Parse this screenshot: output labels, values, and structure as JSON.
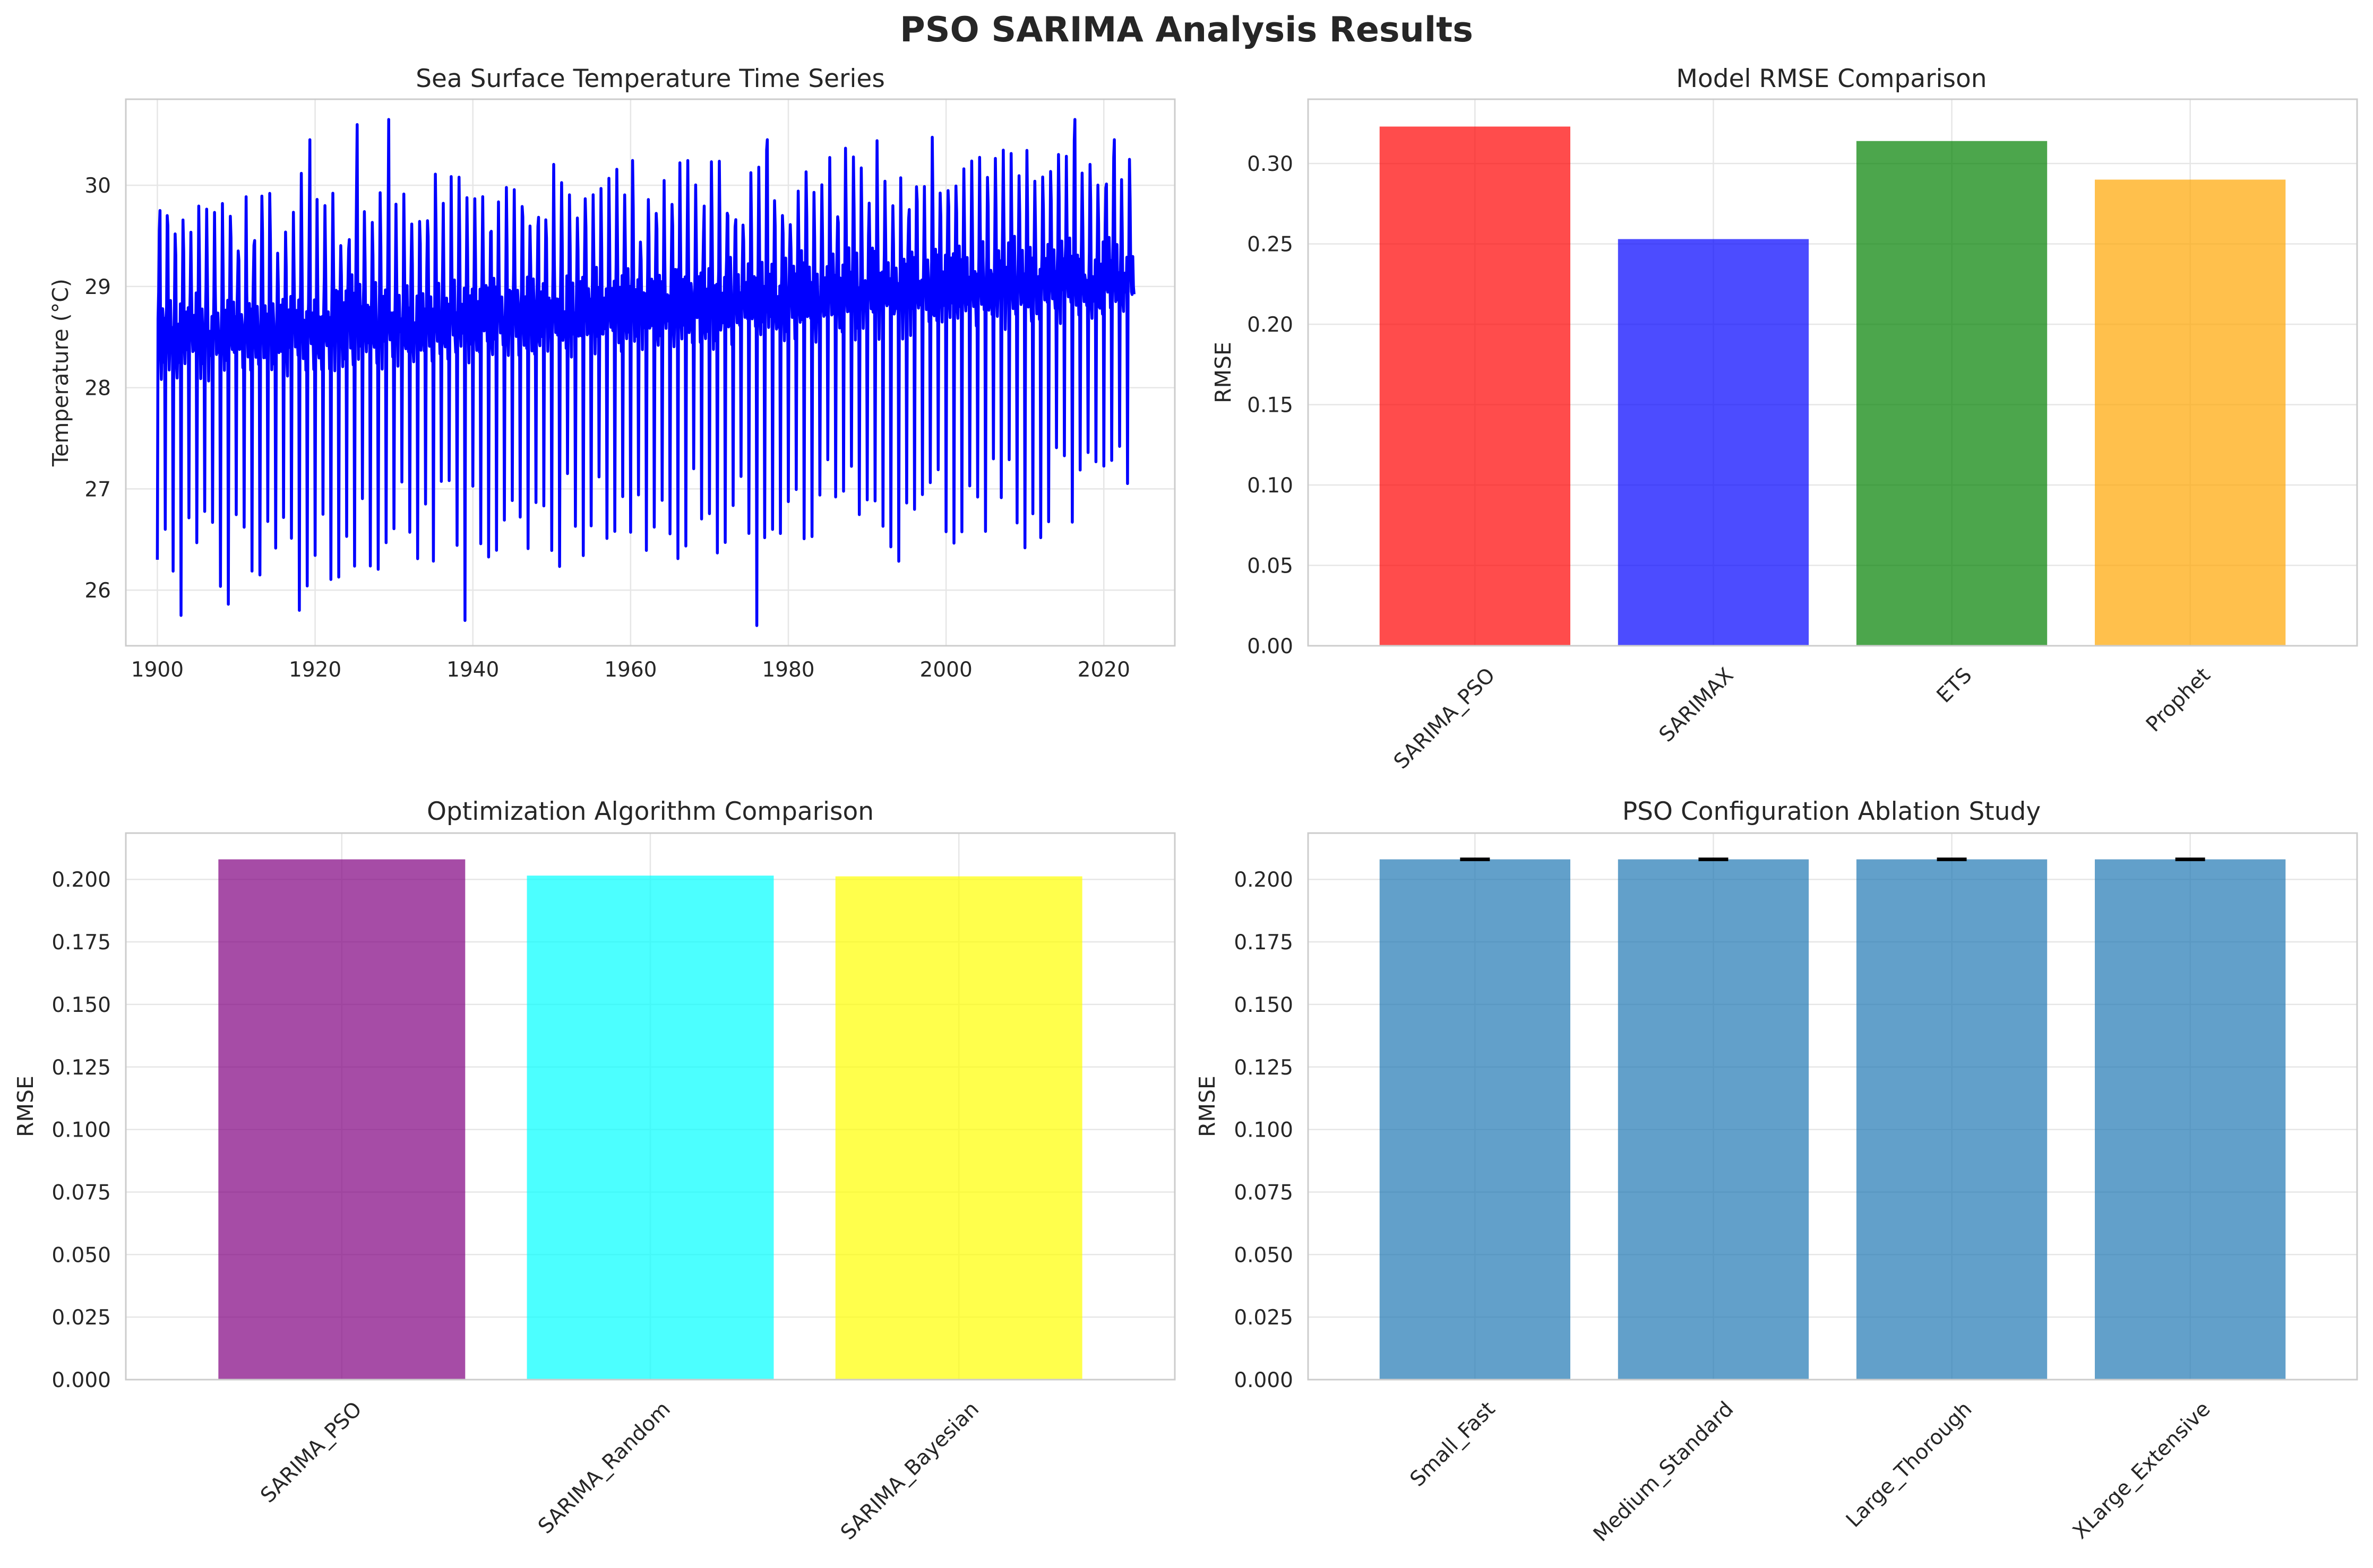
{
  "figure": {
    "title": "PSO SARIMA Analysis Results"
  },
  "chart_data": [
    {
      "id": "sst",
      "type": "line",
      "title": "Sea Surface Temperature Time Series",
      "xlabel": "",
      "ylabel": "Temperature (°C)",
      "xlim": [
        1896,
        2029
      ],
      "ylim": [
        25.45,
        30.85
      ],
      "xticks": [
        1900,
        1920,
        1940,
        1960,
        1980,
        2000,
        2020
      ],
      "yticks": [
        26,
        27,
        28,
        29,
        30
      ],
      "color": "#0000ff",
      "grid": true,
      "legend": "none",
      "series": [
        {
          "x_range": [
            1900,
            2023.9
          ],
          "note_points": "monthly values, strong annual cycle",
          "y_sample": [
            {
              "x": 1900.0,
              "y": 26.3
            },
            {
              "x": 1900.3,
              "y": 29.75
            },
            {
              "x": 1901.0,
              "y": 26.6
            },
            {
              "x": 1901.3,
              "y": 29.6
            },
            {
              "x": 1903.0,
              "y": 25.75
            },
            {
              "x": 1918.0,
              "y": 25.8
            },
            {
              "x": 1919.3,
              "y": 30.45
            },
            {
              "x": 1925.3,
              "y": 30.6
            },
            {
              "x": 1929.3,
              "y": 30.65
            },
            {
              "x": 1939.0,
              "y": 25.7
            },
            {
              "x": 1976.0,
              "y": 25.65
            },
            {
              "x": 1977.3,
              "y": 30.45
            },
            {
              "x": 2016.3,
              "y": 30.65
            },
            {
              "x": 2021.3,
              "y": 30.45
            },
            {
              "x": 2023.3,
              "y": 29.85
            }
          ]
        }
      ]
    },
    {
      "id": "model_rmse",
      "type": "bar",
      "title": "Model RMSE Comparison",
      "xlabel": "",
      "ylabel": "RMSE",
      "categories": [
        "SARIMA_PSO",
        "SARIMAX",
        "ETS",
        "Prophet"
      ],
      "values": [
        0.323,
        0.253,
        0.314,
        0.29
      ],
      "colors": [
        "#ff0000",
        "#0000ff",
        "#008000",
        "#ffa500"
      ],
      "opacity": 0.7,
      "ylim": [
        0,
        0.34
      ],
      "yticks": [
        0.0,
        0.05,
        0.1,
        0.15,
        0.2,
        0.25,
        0.3
      ],
      "ytick_labels": [
        "0.00",
        "0.05",
        "0.10",
        "0.15",
        "0.20",
        "0.25",
        "0.30"
      ],
      "grid": true,
      "legend": "none"
    },
    {
      "id": "opt_algo",
      "type": "bar",
      "title": "Optimization Algorithm Comparison",
      "xlabel": "",
      "ylabel": "RMSE",
      "categories": [
        "SARIMA_PSO",
        "SARIMA_Random",
        "SARIMA_Bayesian"
      ],
      "values": [
        0.208,
        0.2015,
        0.2012
      ],
      "colors": [
        "#800080",
        "#00ffff",
        "#ffff00"
      ],
      "opacity": 0.7,
      "ylim": [
        0,
        0.2185
      ],
      "yticks": [
        0.0,
        0.025,
        0.05,
        0.075,
        0.1,
        0.125,
        0.15,
        0.175,
        0.2
      ],
      "ytick_labels": [
        "0.000",
        "0.025",
        "0.050",
        "0.075",
        "0.100",
        "0.125",
        "0.150",
        "0.175",
        "0.200"
      ],
      "grid": true,
      "legend": "none"
    },
    {
      "id": "ablation",
      "type": "bar",
      "title": "PSO Configuration Ablation Study",
      "xlabel": "",
      "ylabel": "RMSE",
      "categories": [
        "Small_Fast",
        "Medium_Standard",
        "Large_Thorough",
        "XLarge_Extensive"
      ],
      "values": [
        0.208,
        0.208,
        0.208,
        0.208
      ],
      "errors": [
        0.0003,
        0.0003,
        0.0003,
        0.0003
      ],
      "colors": [
        "#1f77b4",
        "#1f77b4",
        "#1f77b4",
        "#1f77b4"
      ],
      "opacity": 0.7,
      "ylim": [
        0,
        0.2185
      ],
      "yticks": [
        0.0,
        0.025,
        0.05,
        0.075,
        0.1,
        0.125,
        0.15,
        0.175,
        0.2
      ],
      "ytick_labels": [
        "0.000",
        "0.025",
        "0.050",
        "0.075",
        "0.100",
        "0.125",
        "0.150",
        "0.175",
        "0.200"
      ],
      "grid": true,
      "legend": "none"
    }
  ]
}
